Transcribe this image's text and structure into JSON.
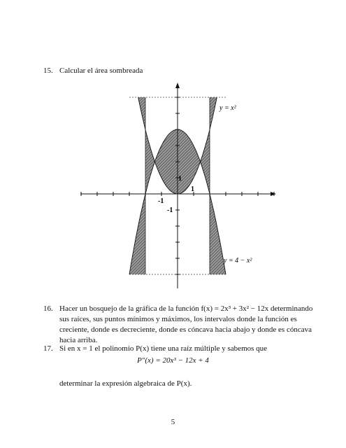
{
  "problems": [
    {
      "number": "15.",
      "text": "Calcular el área sombreada"
    },
    {
      "number": "16.",
      "text": "Hacer un bosquejo de la gráfica de la función  f(x) = 2x³ + 3x² − 12x  determinando sus raíces, sus puntos mínimos y máximos, los intervalos donde la función es creciente, donde es decreciente, donde es cóncava hacia abajo y donde es cóncava hacia arriba."
    },
    {
      "number": "17.",
      "text": "Si en x = 1 el polinomio P(x) tiene una raíz múltiple y sabemos que",
      "equation": "P″(x) = 20x³ − 12x + 4",
      "after": "determinar la expresión algebraica de P(x)."
    }
  ],
  "figure": {
    "curve_labels": [
      "y = x²",
      "y = 4 − x²"
    ],
    "x_tick_labels": [
      "-1",
      "1"
    ],
    "y_tick_labels": [
      "1",
      "-1"
    ]
  },
  "page_number": "5"
}
